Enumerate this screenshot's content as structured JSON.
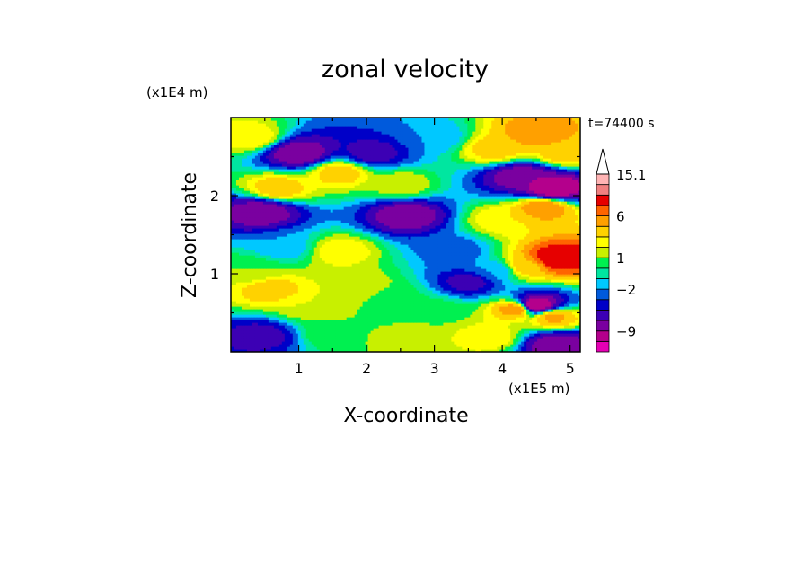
{
  "chart_data": {
    "type": "heatmap",
    "title": "zonal velocity",
    "xlabel": "X-coordinate",
    "ylabel": "Z-coordinate",
    "x_unit": "(x1E5 m)",
    "y_unit": "(x1E4 m)",
    "time_label": "t=74400 s",
    "xlim": [
      0,
      5.15
    ],
    "ylim": [
      0,
      3.0
    ],
    "x_ticks": [
      {
        "value": 1,
        "label": "1"
      },
      {
        "value": 2,
        "label": "2"
      },
      {
        "value": 3,
        "label": "3"
      },
      {
        "value": 4,
        "label": "4"
      },
      {
        "value": 5,
        "label": "5"
      }
    ],
    "y_ticks": [
      {
        "value": 1,
        "label": "1"
      },
      {
        "value": 2,
        "label": "2"
      }
    ],
    "colorbar": {
      "levels": [
        -15.1,
        -12,
        -9,
        -7,
        -5,
        -3.5,
        -2,
        -1,
        0,
        1,
        2,
        3,
        4.5,
        6,
        8,
        11,
        15.1
      ],
      "colors": [
        "#e600b4",
        "#b4008c",
        "#7a00a0",
        "#3c00b4",
        "#0000c8",
        "#005adc",
        "#00c8ff",
        "#00e6a0",
        "#00f050",
        "#c8f000",
        "#ffff00",
        "#ffd200",
        "#ffa000",
        "#ff6400",
        "#e60000",
        "#f08080",
        "#ffb4b4"
      ],
      "tick_labels": [
        {
          "value": 15.1,
          "label": "15.1"
        },
        {
          "value": 6,
          "label": "6"
        },
        {
          "value": 1,
          "label": "1"
        },
        {
          "value": -2,
          "label": "−2"
        },
        {
          "value": -9,
          "label": "−9"
        }
      ],
      "extend": "max"
    },
    "features": [
      {
        "x": 0.45,
        "z": 0.22,
        "u": -6
      },
      {
        "x": 0.6,
        "z": 0.8,
        "u": 4
      },
      {
        "x": 0.3,
        "z": 1.05,
        "u": 1
      },
      {
        "x": 1.1,
        "z": 0.6,
        "u": 2
      },
      {
        "x": 0.8,
        "z": 1.35,
        "u": -2
      },
      {
        "x": 0.45,
        "z": 1.8,
        "u": -9
      },
      {
        "x": 0.7,
        "z": 2.1,
        "u": 4
      },
      {
        "x": 1.0,
        "z": 2.55,
        "u": -9
      },
      {
        "x": 0.3,
        "z": 2.75,
        "u": 3
      },
      {
        "x": 1.6,
        "z": 2.3,
        "u": 4
      },
      {
        "x": 2.1,
        "z": 2.55,
        "u": -6
      },
      {
        "x": 2.5,
        "z": 2.15,
        "u": 2
      },
      {
        "x": 2.6,
        "z": 1.75,
        "u": -9
      },
      {
        "x": 1.6,
        "z": 1.3,
        "u": 3
      },
      {
        "x": 1.9,
        "z": 0.85,
        "u": 2
      },
      {
        "x": 2.4,
        "z": 0.7,
        "u": 0.5
      },
      {
        "x": 3.0,
        "z": 0.55,
        "u": 0.5
      },
      {
        "x": 3.3,
        "z": 1.3,
        "u": -3
      },
      {
        "x": 3.5,
        "z": 0.9,
        "u": -6
      },
      {
        "x": 1.5,
        "z": 0.25,
        "u": 1
      },
      {
        "x": 2.8,
        "z": 0.15,
        "u": 2
      },
      {
        "x": 3.0,
        "z": 2.75,
        "u": -2
      },
      {
        "x": 3.9,
        "z": 2.6,
        "u": 4
      },
      {
        "x": 4.5,
        "z": 2.8,
        "u": 6
      },
      {
        "x": 4.3,
        "z": 2.25,
        "u": -9
      },
      {
        "x": 4.75,
        "z": 2.1,
        "u": -12
      },
      {
        "x": 4.9,
        "z": 2.55,
        "u": 4
      },
      {
        "x": 4.0,
        "z": 1.7,
        "u": 3
      },
      {
        "x": 4.6,
        "z": 1.85,
        "u": 6
      },
      {
        "x": 4.8,
        "z": 1.2,
        "u": 11
      },
      {
        "x": 4.35,
        "z": 1.1,
        "u": 4
      },
      {
        "x": 4.2,
        "z": 0.55,
        "u": 6
      },
      {
        "x": 4.5,
        "z": 0.6,
        "u": -12
      },
      {
        "x": 4.75,
        "z": 0.45,
        "u": 5
      },
      {
        "x": 3.8,
        "z": 0.2,
        "u": 3
      },
      {
        "x": 4.8,
        "z": 0.1,
        "u": -9
      },
      {
        "x": 3.9,
        "z": 1.05,
        "u": -2
      }
    ]
  }
}
